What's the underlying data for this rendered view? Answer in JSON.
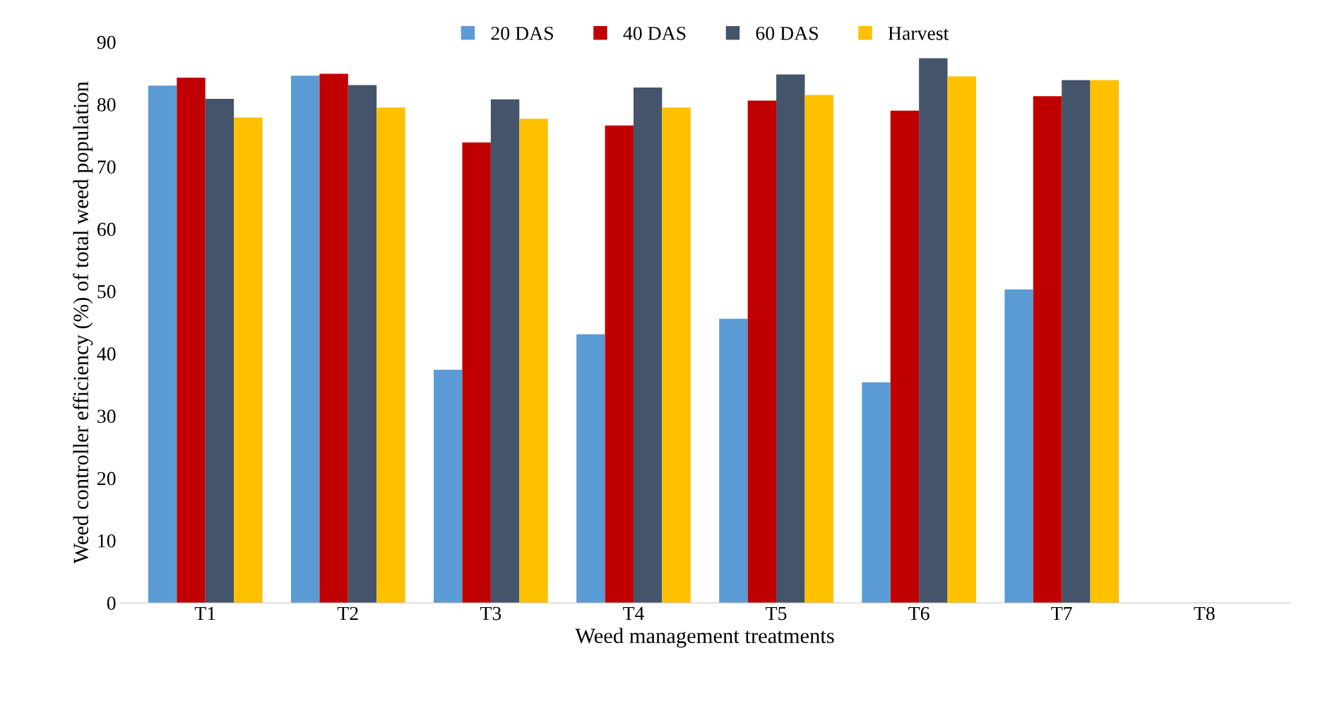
{
  "chart_data": {
    "type": "bar",
    "xlabel": "Weed management treatments",
    "ylabel": "Weed controller efficiency (%) of total weed population",
    "categories": [
      "T1",
      "T2",
      "T3",
      "T4",
      "T5",
      "T6",
      "T7",
      "T8"
    ],
    "series": [
      {
        "name": "20 DAS",
        "color": "#5b9bd5",
        "values": [
          83.0,
          84.6,
          37.4,
          43.1,
          45.6,
          35.4,
          50.3,
          0
        ]
      },
      {
        "name": "40 DAS",
        "color": "#c00000",
        "values": [
          84.3,
          84.9,
          73.9,
          76.6,
          80.6,
          79.0,
          81.3,
          0
        ]
      },
      {
        "name": "60 DAS",
        "color": "#44546a",
        "values": [
          80.9,
          83.1,
          80.8,
          82.7,
          84.8,
          87.4,
          83.9,
          0
        ]
      },
      {
        "name": "Harvest",
        "color": "#ffc000",
        "values": [
          77.9,
          79.5,
          77.7,
          79.5,
          81.5,
          84.5,
          83.9,
          0
        ]
      }
    ],
    "ylim": [
      0,
      90
    ],
    "yticks": [
      0,
      10,
      20,
      30,
      40,
      50,
      60,
      70,
      80,
      90
    ],
    "grid": false,
    "legend": "top"
  }
}
